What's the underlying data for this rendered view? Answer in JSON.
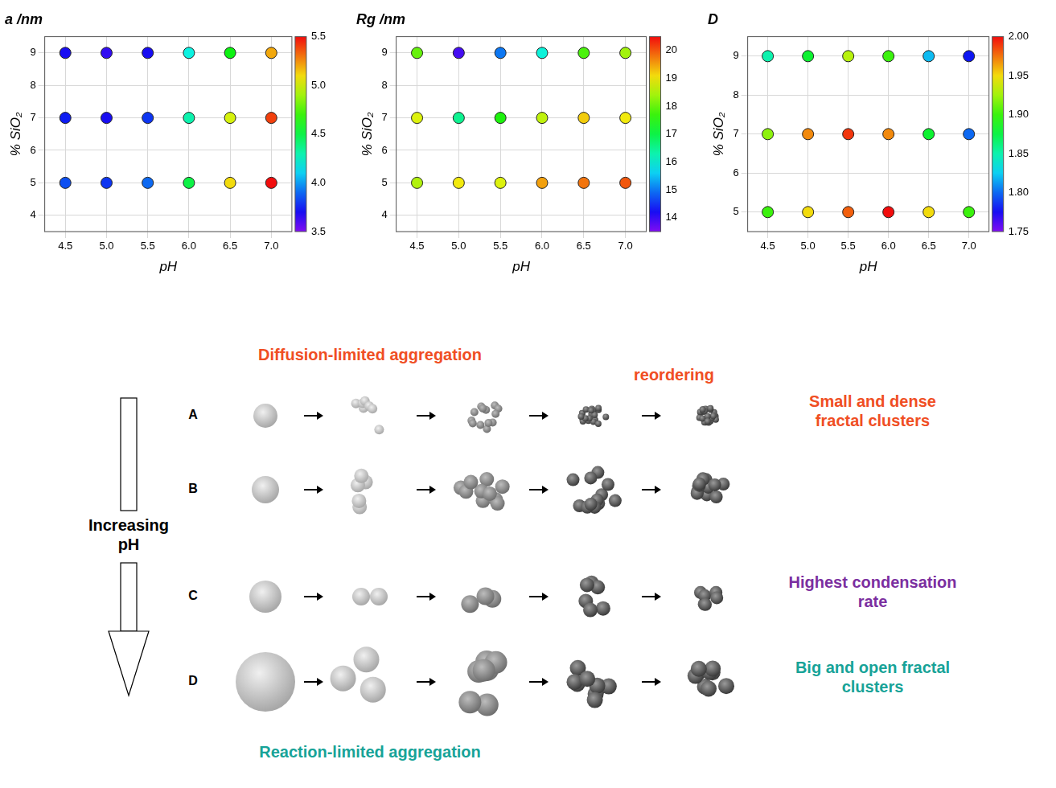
{
  "chart_data": [
    {
      "type": "scatter",
      "title": "a /nm",
      "x_label": "pH",
      "y_label": "% SiO₂",
      "x": [
        4.5,
        4.5,
        4.5,
        5.0,
        5.0,
        5.0,
        5.5,
        5.5,
        5.5,
        6.0,
        6.0,
        6.0,
        6.5,
        6.5,
        6.5,
        7.0,
        7.0,
        7.0
      ],
      "y": [
        5,
        7,
        9,
        5,
        7,
        9,
        5,
        7,
        9,
        5,
        7,
        9,
        5,
        7,
        9,
        5,
        7,
        9
      ],
      "z": [
        3.85,
        3.75,
        3.7,
        3.8,
        3.7,
        3.65,
        3.9,
        3.8,
        3.7,
        4.5,
        4.3,
        4.2,
        5.1,
        5.0,
        4.6,
        5.5,
        5.4,
        5.2
      ],
      "xlim": [
        4.25,
        7.25
      ],
      "xticks": [
        4.5,
        {
          "value": 5,
          "label": "5.0"
        },
        5.5,
        {
          "value": 6,
          "label": "6.0"
        },
        6.5,
        {
          "value": 7,
          "label": "7.0"
        }
      ],
      "ylim": [
        3.5,
        9.5
      ],
      "yticks": [
        4,
        5,
        6,
        7,
        8,
        9
      ],
      "zlim": [
        3.5,
        5.5
      ],
      "zticks": [
        3.5,
        {
          "value": 4,
          "label": "4.0"
        },
        4.5,
        {
          "value": 5,
          "label": "5.0"
        },
        5.5
      ],
      "grid": true
    },
    {
      "type": "scatter",
      "title": "Rg /nm",
      "x_label": "pH",
      "y_label": "% SiO₂",
      "x": [
        4.5,
        4.5,
        4.5,
        5.0,
        5.0,
        5.0,
        5.5,
        5.5,
        5.5,
        6.0,
        6.0,
        6.0,
        6.5,
        6.5,
        6.5,
        7.0,
        7.0,
        7.0
      ],
      "y": [
        5,
        7,
        9,
        5,
        7,
        9,
        5,
        7,
        9,
        5,
        7,
        9,
        5,
        7,
        9,
        5,
        7,
        9
      ],
      "z": [
        18.5,
        18.8,
        18.0,
        19.0,
        16.5,
        13.9,
        18.8,
        17.5,
        15.0,
        19.5,
        18.6,
        16.0,
        19.8,
        19.2,
        17.8,
        20.0,
        19.0,
        18.4
      ],
      "xlim": [
        4.25,
        7.25
      ],
      "xticks": [
        4.5,
        {
          "value": 5,
          "label": "5.0"
        },
        5.5,
        {
          "value": 6,
          "label": "6.0"
        },
        6.5,
        {
          "value": 7,
          "label": "7.0"
        }
      ],
      "ylim": [
        3.5,
        9.5
      ],
      "yticks": [
        4,
        5,
        6,
        7,
        8,
        9
      ],
      "zlim": [
        13.5,
        20.5
      ],
      "zticks": [
        14,
        15,
        16,
        17,
        18,
        19,
        20
      ],
      "grid": true
    },
    {
      "type": "scatter",
      "title": "D",
      "x_label": "pH",
      "y_label": "% SiO₂",
      "x": [
        4.5,
        4.5,
        4.5,
        5.0,
        5.0,
        5.0,
        5.5,
        5.5,
        5.5,
        6.0,
        6.0,
        6.0,
        6.5,
        6.5,
        6.5,
        7.0,
        7.0,
        7.0
      ],
      "y": [
        5,
        7,
        9,
        5,
        7,
        9,
        5,
        7,
        9,
        5,
        7,
        9,
        5,
        7,
        9,
        5,
        7,
        9
      ],
      "z": [
        1.9,
        1.92,
        1.85,
        1.95,
        1.97,
        1.88,
        1.98,
        1.99,
        1.93,
        2.0,
        1.97,
        1.9,
        1.95,
        1.88,
        1.82,
        1.9,
        1.8,
        1.78
      ],
      "xlim": [
        4.25,
        7.25
      ],
      "xticks": [
        4.5,
        {
          "value": 5,
          "label": "5.0"
        },
        5.5,
        {
          "value": 6,
          "label": "6.0"
        },
        6.5,
        {
          "value": 7,
          "label": "7.0"
        }
      ],
      "ylim": [
        4.5,
        9.5
      ],
      "yticks": [
        5,
        6,
        7,
        8,
        9
      ],
      "zlim": [
        1.75,
        2.0
      ],
      "zticks": [
        1.75,
        {
          "value": 1.8,
          "label": "1.80"
        },
        1.85,
        {
          "value": 1.9,
          "label": "1.90"
        },
        1.95,
        {
          "value": 2,
          "label": "2.00"
        }
      ],
      "grid": true
    }
  ],
  "diagram": {
    "top_label": {
      "text": "Diffusion-limited aggregation",
      "color": "#f04e23"
    },
    "step_label": {
      "text": "reordering",
      "color": "#f04e23"
    },
    "bottom_label": {
      "text": "Reaction-limited aggregation",
      "color": "#17a398"
    },
    "arrow_label": "Increasing pH",
    "rows": [
      {
        "label": "A",
        "note": "Small and dense fractal clusters",
        "color": "#f04e23"
      },
      {
        "label": "B"
      },
      {
        "label": "C",
        "note": "Highest condensation rate",
        "color": "#7b2fa0"
      },
      {
        "label": "D",
        "note": "Big and open fractal clusters",
        "color": "#17a398"
      }
    ]
  }
}
